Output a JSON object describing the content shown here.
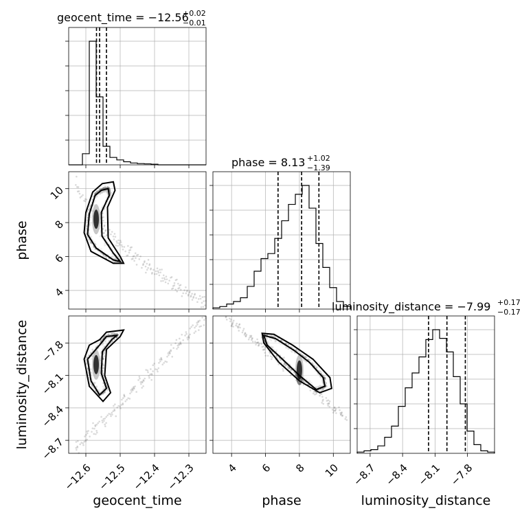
{
  "chart_data": {
    "type": "corner",
    "parameters": [
      "geocent_time",
      "phase",
      "luminosity_distance"
    ],
    "axis_labels": {
      "x": [
        "geocent_time",
        "phase",
        "luminosity_distance"
      ],
      "y": [
        "",
        "phase",
        "luminosity_distance"
      ]
    },
    "grid": true,
    "diagonal": [
      {
        "parameter": "geocent_time",
        "title": {
          "prefix": "geocent_time = ",
          "value": "−12.56",
          "plus": "+0.02",
          "minus": "−0.01"
        },
        "range": [
          -12.65,
          -12.25
        ],
        "ticks": [
          -12.6,
          -12.5,
          -12.4,
          -12.3
        ],
        "tick_labels": [
          "−12.6",
          "−12.5",
          "−12.4",
          "−12.3"
        ],
        "quantiles": [
          -12.569,
          -12.56,
          -12.54
        ],
        "bin_edges": [
          -12.65,
          -12.63,
          -12.61,
          -12.59,
          -12.57,
          -12.55,
          -12.53,
          -12.51,
          -12.49,
          -12.47,
          -12.45,
          -12.43,
          -12.41,
          -12.39,
          -12.37,
          -12.35,
          -12.33,
          -12.31,
          -12.29,
          -12.27,
          -12.25
        ],
        "counts": [
          0,
          0,
          0.09,
          1.0,
          0.55,
          0.15,
          0.06,
          0.04,
          0.025,
          0.015,
          0.01,
          0.008,
          0.005,
          0,
          0,
          0,
          0,
          0,
          0,
          0
        ]
      },
      {
        "parameter": "phase",
        "title": {
          "prefix": "phase = ",
          "value": "8.13",
          "plus": "+1.02",
          "minus": "−1.39"
        },
        "range": [
          2.9,
          11.0
        ],
        "ticks": [
          4,
          6,
          8,
          10
        ],
        "tick_labels": [
          "4",
          "6",
          "8",
          "10"
        ],
        "quantiles": [
          6.74,
          8.13,
          9.15
        ],
        "bin_edges": [
          2.9,
          3.305,
          3.71,
          4.115,
          4.52,
          4.925,
          5.33,
          5.735,
          6.14,
          6.545,
          6.95,
          7.355,
          7.76,
          8.165,
          8.57,
          8.975,
          9.38,
          9.785,
          10.19,
          10.595,
          11.0
        ],
        "counts": [
          0.01,
          0.02,
          0.04,
          0.06,
          0.09,
          0.18,
          0.3,
          0.4,
          0.44,
          0.56,
          0.7,
          0.83,
          0.91,
          0.98,
          0.8,
          0.52,
          0.33,
          0.17,
          0.06,
          0.02
        ]
      },
      {
        "parameter": "luminosity_distance",
        "title": {
          "prefix": "luminosity_distance = ",
          "value": "−7.99",
          "plus": "+0.17",
          "minus": "−0.17"
        },
        "range": [
          -8.82,
          -7.55
        ],
        "ticks": [
          -8.7,
          -8.4,
          -8.1,
          -7.8
        ],
        "tick_labels": [
          "−8.7",
          "−8.4",
          "−8.1",
          "−7.8"
        ],
        "quantiles": [
          -8.16,
          -7.99,
          -7.82
        ],
        "bin_edges": [
          -8.82,
          -8.7565,
          -8.693,
          -8.6295,
          -8.566,
          -8.5025,
          -8.439,
          -8.3755,
          -8.312,
          -8.2485,
          -8.185,
          -8.1215,
          -8.058,
          -7.9945,
          -7.931,
          -7.8675,
          -7.804,
          -7.7405,
          -7.677,
          -7.6135,
          -7.55
        ],
        "counts": [
          0.01,
          0.02,
          0.03,
          0.06,
          0.13,
          0.22,
          0.38,
          0.53,
          0.65,
          0.78,
          0.92,
          1.0,
          0.93,
          0.82,
          0.62,
          0.4,
          0.18,
          0.07,
          0.02,
          0.01
        ]
      }
    ],
    "pairs": [
      {
        "x": "geocent_time",
        "y": "phase",
        "y_ticks": [
          4,
          6,
          8,
          10
        ],
        "y_tick_labels": [
          "4",
          "6",
          "8",
          "10"
        ],
        "density_peak": [
          -12.57,
          8.2
        ],
        "contours": [
          [
            [
              -12.573,
              9.6
            ],
            [
              -12.555,
              9.9
            ],
            [
              -12.535,
              10.0
            ],
            [
              -12.532,
              9.6
            ],
            [
              -12.555,
              8.6
            ],
            [
              -12.553,
              7.2
            ],
            [
              -12.52,
              6.2
            ],
            [
              -12.5,
              5.7
            ],
            [
              -12.52,
              5.8
            ],
            [
              -12.57,
              6.5
            ],
            [
              -12.595,
              7.3
            ],
            [
              -12.59,
              8.5
            ]
          ],
          [
            [
              -12.58,
              9.8
            ],
            [
              -12.552,
              10.3
            ],
            [
              -12.52,
              10.4
            ],
            [
              -12.515,
              9.9
            ],
            [
              -12.537,
              8.9
            ],
            [
              -12.535,
              7.1
            ],
            [
              -12.5,
              6.0
            ],
            [
              -12.49,
              5.6
            ],
            [
              -12.52,
              5.6
            ],
            [
              -12.585,
              6.3
            ],
            [
              -12.605,
              7.4
            ],
            [
              -12.6,
              8.6
            ]
          ]
        ],
        "scatter_extent": {
          "x": [
            -12.63,
            -12.25
          ],
          "y": [
            3.2,
            10.7
          ]
        }
      },
      {
        "x": "geocent_time",
        "y": "luminosity_distance",
        "y_ticks": [
          -8.7,
          -8.4,
          -8.1,
          -7.8
        ],
        "y_tick_labels": [
          "−8.7",
          "−8.4",
          "−8.1",
          "−7.8"
        ],
        "density_peak": [
          -12.57,
          -8.0
        ],
        "contours": [
          [
            [
              -12.555,
              -7.8
            ],
            [
              -12.54,
              -7.74
            ],
            [
              -12.51,
              -7.73
            ],
            [
              -12.525,
              -7.77
            ],
            [
              -12.552,
              -7.88
            ],
            [
              -12.555,
              -8.08
            ],
            [
              -12.54,
              -8.22
            ],
            [
              -12.56,
              -8.28
            ],
            [
              -12.585,
              -8.15
            ],
            [
              -12.595,
              -7.95
            ]
          ],
          [
            [
              -12.56,
              -7.77
            ],
            [
              -12.54,
              -7.7
            ],
            [
              -12.49,
              -7.68
            ],
            [
              -12.5,
              -7.74
            ],
            [
              -12.54,
              -7.86
            ],
            [
              -12.545,
              -8.1
            ],
            [
              -12.528,
              -8.26
            ],
            [
              -12.55,
              -8.34
            ],
            [
              -12.59,
              -8.2
            ],
            [
              -12.605,
              -7.95
            ],
            [
              -12.59,
              -7.82
            ]
          ]
        ],
        "scatter_extent": {
          "x": [
            -12.63,
            -12.25
          ],
          "y": [
            -8.78,
            -7.55
          ]
        }
      },
      {
        "x": "phase",
        "y": "luminosity_distance",
        "density_peak": [
          8.0,
          -8.05
        ],
        "contours": [
          [
            [
              5.9,
              -7.73
            ],
            [
              6.6,
              -7.76
            ],
            [
              7.7,
              -7.87
            ],
            [
              8.6,
              -7.98
            ],
            [
              9.4,
              -8.12
            ],
            [
              9.5,
              -8.2
            ],
            [
              9.0,
              -8.23
            ],
            [
              8.0,
              -8.1
            ],
            [
              7.0,
              -7.95
            ],
            [
              6.1,
              -7.82
            ]
          ],
          [
            [
              5.8,
              -7.71
            ],
            [
              6.5,
              -7.72
            ],
            [
              7.6,
              -7.82
            ],
            [
              8.8,
              -7.95
            ],
            [
              9.8,
              -8.12
            ],
            [
              9.9,
              -8.22
            ],
            [
              9.2,
              -8.26
            ],
            [
              8.0,
              -8.15
            ],
            [
              6.8,
              -7.98
            ],
            [
              5.9,
              -7.8
            ]
          ]
        ],
        "scatter_extent": {
          "x": [
            3.6,
            10.8
          ],
          "y": [
            -8.5,
            -7.55
          ]
        }
      }
    ]
  }
}
